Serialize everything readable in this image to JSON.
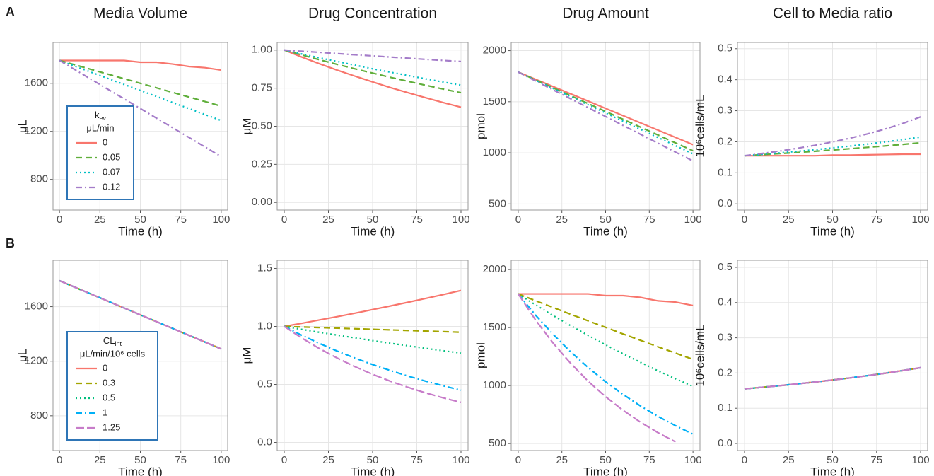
{
  "panels": [
    {
      "label": "A"
    },
    {
      "label": "B"
    }
  ],
  "chart_data": [
    {
      "type": "line",
      "title": "Media Volume",
      "xlabel": "Time (h)",
      "ylabel": "μL",
      "xlim": [
        -4,
        104
      ],
      "ylim": [
        545,
        1940
      ],
      "xticks": [
        0,
        25,
        50,
        75,
        100
      ],
      "yticks": [
        800,
        1200,
        1600
      ],
      "grid": true,
      "x": [
        0,
        10,
        20,
        30,
        40,
        50,
        60,
        70,
        80,
        90,
        100
      ],
      "legend": {
        "title": "k",
        "title_sub": "ev",
        "title_line2": "μL/min",
        "position": "bottom-left"
      },
      "series": [
        {
          "name": "0",
          "color": "#F8766D",
          "dash": "solid",
          "values": [
            1790,
            1790,
            1790,
            1790,
            1790,
            1775,
            1775,
            1760,
            1740,
            1730,
            1710
          ]
        },
        {
          "name": "0.05",
          "color": "#5FAE3A",
          "dash": "dashed",
          "values": [
            1790,
            1752,
            1714,
            1676,
            1638,
            1600,
            1562,
            1524,
            1486,
            1448,
            1410
          ]
        },
        {
          "name": "0.07",
          "color": "#00BFC4",
          "dash": "dotted",
          "values": [
            1790,
            1740,
            1690,
            1640,
            1590,
            1540,
            1490,
            1440,
            1390,
            1340,
            1290
          ]
        },
        {
          "name": "0.12",
          "color": "#A47CC9",
          "dash": "dotdash",
          "values": [
            1790,
            1710,
            1630,
            1550,
            1470,
            1390,
            1310,
            1230,
            1150,
            1070,
            990
          ]
        }
      ]
    },
    {
      "type": "line",
      "title": "Drug Concentration",
      "xlabel": "Time (h)",
      "ylabel": "μM",
      "xlim": [
        -4,
        104
      ],
      "ylim": [
        -0.05,
        1.05
      ],
      "xticks": [
        0,
        25,
        50,
        75,
        100
      ],
      "yticks": [
        {
          "value": 0,
          "label": "0.00"
        },
        {
          "value": 0.25,
          "label": "0.25"
        },
        {
          "value": 0.5,
          "label": "0.50"
        },
        {
          "value": 0.75,
          "label": "0.75"
        },
        {
          "value": 1,
          "label": "1.00"
        }
      ],
      "grid": true,
      "x": [
        0,
        10,
        20,
        30,
        40,
        50,
        60,
        70,
        80,
        90,
        100
      ],
      "series": [
        {
          "color": "#F8766D",
          "dash": "solid",
          "values": [
            1,
            0.954,
            0.91,
            0.868,
            0.829,
            0.791,
            0.754,
            0.72,
            0.687,
            0.655,
            0.625
          ]
        },
        {
          "color": "#5FAE3A",
          "dash": "dashed",
          "values": [
            1,
            0.968,
            0.936,
            0.906,
            0.877,
            0.849,
            0.821,
            0.795,
            0.769,
            0.744,
            0.72
          ]
        },
        {
          "color": "#00BFC4",
          "dash": "dotted",
          "values": [
            1,
            0.974,
            0.949,
            0.925,
            0.901,
            0.877,
            0.855,
            0.833,
            0.811,
            0.79,
            0.77
          ]
        },
        {
          "color": "#A47CC9",
          "dash": "dotdash",
          "values": [
            1,
            0.992,
            0.985,
            0.977,
            0.969,
            0.962,
            0.954,
            0.947,
            0.939,
            0.932,
            0.925
          ]
        }
      ]
    },
    {
      "type": "line",
      "title": "Drug Amount",
      "xlabel": "Time (h)",
      "ylabel": "pmol",
      "xlim": [
        -4,
        104
      ],
      "ylim": [
        440,
        2080
      ],
      "xticks": [
        0,
        25,
        50,
        75,
        100
      ],
      "yticks": [
        500,
        1000,
        1500,
        2000
      ],
      "grid": true,
      "x": [
        0,
        10,
        20,
        30,
        40,
        50,
        60,
        70,
        80,
        90,
        100
      ],
      "series": [
        {
          "color": "#F8766D",
          "dash": "solid",
          "values": [
            1790,
            1719,
            1648,
            1577,
            1506,
            1435,
            1364,
            1293,
            1222,
            1151,
            1080
          ]
        },
        {
          "color": "#5FAE3A",
          "dash": "dashed",
          "values": [
            1790,
            1713,
            1636,
            1559,
            1482,
            1405,
            1328,
            1251,
            1174,
            1097,
            1020
          ]
        },
        {
          "color": "#00BFC4",
          "dash": "dotted",
          "values": [
            1790,
            1710,
            1630,
            1550,
            1470,
            1390,
            1310,
            1230,
            1150,
            1070,
            990
          ]
        },
        {
          "color": "#A47CC9",
          "dash": "dotdash",
          "values": [
            1790,
            1703,
            1616,
            1529,
            1442,
            1355,
            1268,
            1181,
            1094,
            1007,
            920
          ]
        }
      ]
    },
    {
      "type": "line",
      "title": "Cell to Media ratio",
      "xlabel": "Time (h)",
      "ylabel": "10⁶cells/mL",
      "xlim": [
        -4,
        104
      ],
      "ylim": [
        -0.02,
        0.52
      ],
      "xticks": [
        0,
        25,
        50,
        75,
        100
      ],
      "yticks": [
        {
          "value": 0,
          "label": "0.0"
        },
        {
          "value": 0.1,
          "label": "0.1"
        },
        {
          "value": 0.2,
          "label": "0.2"
        },
        {
          "value": 0.3,
          "label": "0.3"
        },
        {
          "value": 0.4,
          "label": "0.4"
        },
        {
          "value": 0.5,
          "label": "0.5"
        }
      ],
      "grid": true,
      "x": [
        0,
        10,
        20,
        30,
        40,
        50,
        60,
        70,
        80,
        90,
        100
      ],
      "series": [
        {
          "color": "#F8766D",
          "dash": "solid",
          "values": [
            0.155,
            0.155,
            0.155,
            0.155,
            0.155,
            0.157,
            0.157,
            0.158,
            0.159,
            0.16,
            0.16
          ]
        },
        {
          "color": "#5FAE3A",
          "dash": "dashed",
          "values": [
            0.155,
            0.1584,
            0.1619,
            0.1655,
            0.1694,
            0.1734,
            0.1776,
            0.1821,
            0.1867,
            0.1916,
            0.1968
          ]
        },
        {
          "color": "#00BFC4",
          "dash": "dotted",
          "values": [
            0.155,
            0.1595,
            0.1642,
            0.1692,
            0.1745,
            0.1802,
            0.1862,
            0.1927,
            0.1996,
            0.2071,
            0.2151
          ]
        },
        {
          "color": "#A47CC9",
          "dash": "dotdash",
          "values": [
            0.155,
            0.1623,
            0.1702,
            0.179,
            0.1887,
            0.1996,
            0.2118,
            0.2256,
            0.2413,
            0.2593,
            0.2803
          ]
        }
      ]
    },
    {
      "type": "line",
      "xlabel": "Time (h)",
      "ylabel": "μL",
      "xlim": [
        -4,
        104
      ],
      "ylim": [
        545,
        1940
      ],
      "xticks": [
        0,
        25,
        50,
        75,
        100
      ],
      "yticks": [
        800,
        1200,
        1600
      ],
      "grid": true,
      "x": [
        0,
        10,
        20,
        30,
        40,
        50,
        60,
        70,
        80,
        90,
        100
      ],
      "legend": {
        "title": "CL",
        "title_sub": "int",
        "title_line2": "μL/min/10⁶ cells",
        "position": "bottom-left"
      },
      "series": [
        {
          "name": "0",
          "color": "#F8766D",
          "dash": "solid",
          "values": [
            1790,
            1740,
            1690,
            1640,
            1590,
            1540,
            1490,
            1440,
            1390,
            1340,
            1290
          ]
        },
        {
          "name": "0.3",
          "color": "#A3A500",
          "dash": "dashed",
          "values": [
            1790,
            1740,
            1690,
            1640,
            1590,
            1540,
            1490,
            1440,
            1390,
            1340,
            1290
          ]
        },
        {
          "name": "0.5",
          "color": "#00BF7D",
          "dash": "dotted",
          "values": [
            1790,
            1740,
            1690,
            1640,
            1590,
            1540,
            1490,
            1440,
            1390,
            1340,
            1290
          ]
        },
        {
          "name": "1",
          "color": "#00B0F6",
          "dash": "dotdash",
          "values": [
            1790,
            1740,
            1690,
            1640,
            1590,
            1540,
            1490,
            1440,
            1390,
            1340,
            1290
          ]
        },
        {
          "name": "1.25",
          "color": "#C77CC9",
          "dash": "longdash",
          "values": [
            1790,
            1740,
            1690,
            1640,
            1590,
            1540,
            1490,
            1440,
            1390,
            1340,
            1290
          ]
        }
      ]
    },
    {
      "type": "line",
      "xlabel": "Time (h)",
      "ylabel": "μM",
      "xlim": [
        -4,
        104
      ],
      "ylim": [
        -0.07,
        1.57
      ],
      "xticks": [
        0,
        25,
        50,
        75,
        100
      ],
      "yticks": [
        {
          "value": 0,
          "label": "0.0"
        },
        {
          "value": 0.5,
          "label": "0.5"
        },
        {
          "value": 1,
          "label": "1.0"
        },
        {
          "value": 1.5,
          "label": "1.5"
        }
      ],
      "grid": true,
      "x": [
        0,
        10,
        20,
        30,
        40,
        50,
        60,
        70,
        80,
        90,
        100
      ],
      "series": [
        {
          "color": "#F8766D",
          "dash": "solid",
          "values": [
            1,
            1.027,
            1.056,
            1.084,
            1.114,
            1.145,
            1.176,
            1.208,
            1.241,
            1.275,
            1.31
          ]
        },
        {
          "color": "#A3A500",
          "dash": "dashed",
          "values": [
            1,
            0.995,
            0.99,
            0.985,
            0.98,
            0.975,
            0.97,
            0.965,
            0.96,
            0.955,
            0.95
          ]
        },
        {
          "color": "#00BF7D",
          "dash": "dotted",
          "values": [
            1,
            0.974,
            0.949,
            0.925,
            0.901,
            0.877,
            0.855,
            0.833,
            0.811,
            0.79,
            0.77
          ]
        },
        {
          "color": "#00B0F6",
          "dash": "dotdash",
          "values": [
            1,
            0.923,
            0.853,
            0.787,
            0.727,
            0.671,
            0.62,
            0.572,
            0.528,
            0.488,
            0.45
          ]
        },
        {
          "color": "#C77CC9",
          "dash": "longdash",
          "values": [
            1,
            0.899,
            0.808,
            0.727,
            0.653,
            0.587,
            0.528,
            0.475,
            0.427,
            0.384,
            0.345
          ]
        }
      ]
    },
    {
      "type": "line",
      "xlabel": "Time (h)",
      "ylabel": "pmol",
      "xlim": [
        -4,
        104
      ],
      "ylim": [
        440,
        2080
      ],
      "xticks": [
        0,
        25,
        50,
        75,
        100
      ],
      "yticks": [
        500,
        1000,
        1500,
        2000
      ],
      "grid": true,
      "x": [
        0,
        10,
        20,
        30,
        40,
        50,
        60,
        70,
        80,
        90,
        100
      ],
      "series": [
        {
          "color": "#F8766D",
          "dash": "solid",
          "values": [
            1790,
            1790,
            1790,
            1790,
            1790,
            1775,
            1775,
            1760,
            1730,
            1720,
            1690
          ]
        },
        {
          "color": "#A3A500",
          "dash": "dashed",
          "values": [
            1790,
            1731,
            1673,
            1615,
            1558,
            1502,
            1445,
            1390,
            1334,
            1280,
            1226
          ]
        },
        {
          "color": "#00BF7D",
          "dash": "dotted",
          "values": [
            1790,
            1695,
            1604,
            1517,
            1433,
            1351,
            1274,
            1200,
            1127,
            1059,
            993
          ]
        },
        {
          "color": "#00B0F6",
          "dash": "dotdash",
          "values": [
            1790,
            1606,
            1442,
            1291,
            1156,
            1033,
            924,
            824,
            734,
            654,
            581
          ]
        },
        {
          "color": "#C77CC9",
          "dash": "longdash",
          "values": [
            1790,
            1564,
            1366,
            1192,
            1038,
            904,
            787,
            684,
            594,
            515,
            null
          ]
        }
      ]
    },
    {
      "type": "line",
      "xlabel": "Time (h)",
      "ylabel": "10⁶cells/mL",
      "xlim": [
        -4,
        104
      ],
      "ylim": [
        -0.02,
        0.52
      ],
      "xticks": [
        0,
        25,
        50,
        75,
        100
      ],
      "yticks": [
        {
          "value": 0,
          "label": "0.0"
        },
        {
          "value": 0.1,
          "label": "0.1"
        },
        {
          "value": 0.2,
          "label": "0.2"
        },
        {
          "value": 0.3,
          "label": "0.3"
        },
        {
          "value": 0.4,
          "label": "0.4"
        },
        {
          "value": 0.5,
          "label": "0.5"
        }
      ],
      "grid": true,
      "x": [
        0,
        10,
        20,
        30,
        40,
        50,
        60,
        70,
        80,
        90,
        100
      ],
      "series": [
        {
          "color": "#F8766D",
          "dash": "solid",
          "values": [
            0.155,
            0.1595,
            0.1642,
            0.1692,
            0.1745,
            0.1802,
            0.1862,
            0.1927,
            0.1996,
            0.2071,
            0.2151
          ]
        },
        {
          "color": "#A3A500",
          "dash": "dashed",
          "values": [
            0.155,
            0.1595,
            0.1642,
            0.1692,
            0.1745,
            0.1802,
            0.1862,
            0.1927,
            0.1996,
            0.2071,
            0.2151
          ]
        },
        {
          "color": "#00BF7D",
          "dash": "dotted",
          "values": [
            0.155,
            0.1595,
            0.1642,
            0.1692,
            0.1745,
            0.1802,
            0.1862,
            0.1927,
            0.1996,
            0.2071,
            0.2151
          ]
        },
        {
          "color": "#00B0F6",
          "dash": "dotdash",
          "values": [
            0.155,
            0.1595,
            0.1642,
            0.1692,
            0.1745,
            0.1802,
            0.1862,
            0.1927,
            0.1996,
            0.2071,
            0.2151
          ]
        },
        {
          "color": "#C77CC9",
          "dash": "longdash",
          "values": [
            0.155,
            0.1595,
            0.1642,
            0.1692,
            0.1745,
            0.1802,
            0.1862,
            0.1927,
            0.1996,
            0.2071,
            0.2151
          ]
        }
      ]
    }
  ]
}
